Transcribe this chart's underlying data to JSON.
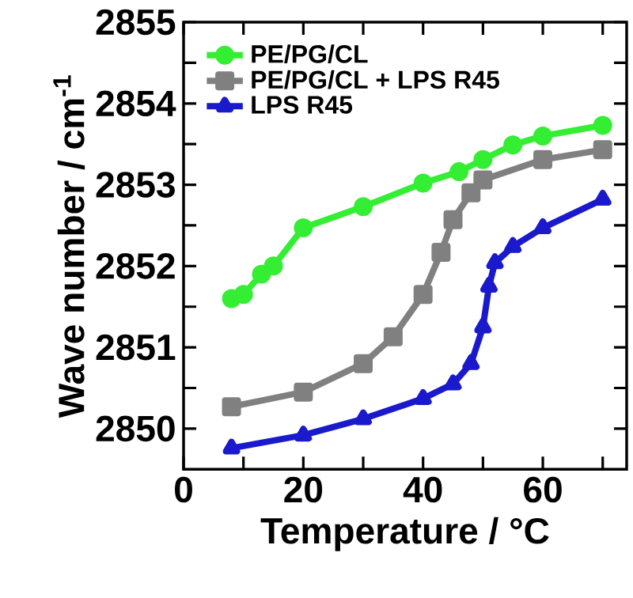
{
  "chart_data": {
    "type": "line",
    "xlabel": "Temperature / °C",
    "ylabel": "Wave number / cm$^{-1}$",
    "xlim": [
      0,
      74
    ],
    "ylim": [
      2849.5,
      2855
    ],
    "xticks": [
      0,
      20,
      40,
      60,
      {
        "value": 10,
        "label": null
      },
      {
        "value": 30,
        "label": null
      },
      {
        "value": 50,
        "label": null
      },
      {
        "value": 70,
        "label": null
      }
    ],
    "yticks": [
      2850,
      2851,
      2852,
      2853,
      2854,
      2855,
      {
        "value": 2850.5,
        "label": null
      },
      {
        "value": 2851.5,
        "label": null
      },
      {
        "value": 2852.5,
        "label": null
      },
      {
        "value": 2853.5,
        "label": null
      },
      {
        "value": 2854.5,
        "label": null
      }
    ],
    "grid": false,
    "legend": "top left",
    "series": [
      {
        "name": "PE/PG/CL",
        "color": "#33ee33",
        "marker": "circle",
        "x": [
          8,
          10,
          13,
          15,
          20,
          30,
          40,
          46,
          50,
          55,
          60,
          70
        ],
        "values": [
          2851.6,
          2851.65,
          2851.9,
          2852.0,
          2852.47,
          2852.73,
          2853.02,
          2853.16,
          2853.31,
          2853.49,
          2853.6,
          2853.73
        ]
      },
      {
        "name": "PE/PG/CL + LPS R45",
        "color": "#808080",
        "marker": "square",
        "x": [
          8,
          20,
          30,
          35,
          40,
          43,
          45,
          48,
          50,
          60,
          70
        ],
        "values": [
          2850.27,
          2850.45,
          2850.8,
          2851.13,
          2851.65,
          2852.17,
          2852.57,
          2852.9,
          2853.06,
          2853.31,
          2853.43
        ]
      },
      {
        "name": "LPS R45",
        "color": "#1a1acc",
        "marker": "triangle",
        "x": [
          8,
          20,
          30,
          40,
          45,
          48,
          50,
          51,
          52,
          55,
          60,
          70
        ],
        "values": [
          2849.76,
          2849.92,
          2850.12,
          2850.37,
          2850.55,
          2850.8,
          2851.25,
          2851.75,
          2852.04,
          2852.24,
          2852.47,
          2852.82
        ]
      }
    ]
  }
}
